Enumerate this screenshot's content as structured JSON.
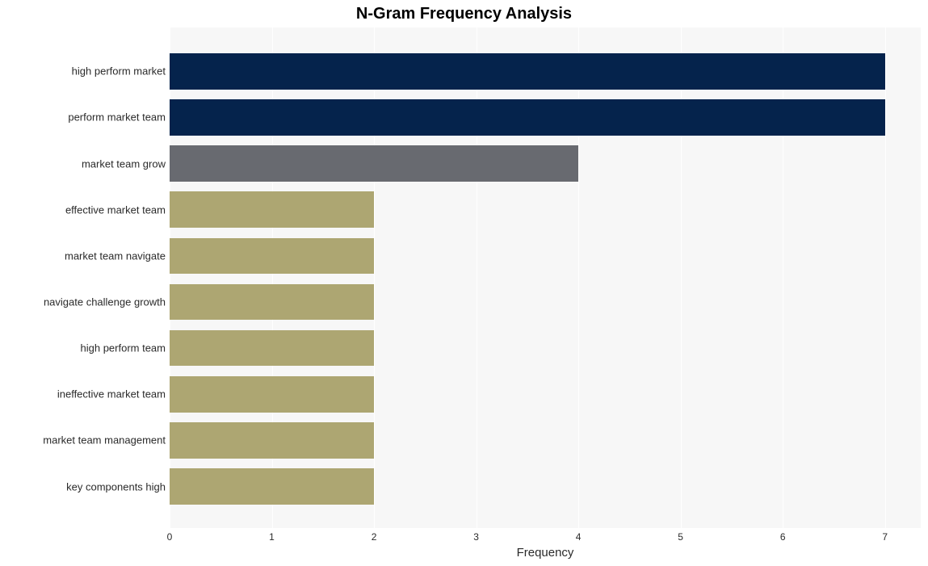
{
  "chart": {
    "type": "horizontal-bar",
    "title": "N-Gram Frequency Analysis",
    "title_fontsize": 20,
    "title_fontweight": 700,
    "xlabel": "Frequency",
    "label_fontsize": 15,
    "tick_fontsize": 12,
    "ylabel_fontsize": 13,
    "background_color": "#ffffff",
    "plot_background_color": "#f7f7f7",
    "grid_color": "#ffffff",
    "text_color": "#2a2a2a",
    "xlim": [
      0,
      7.35
    ],
    "xticks": [
      0,
      1,
      2,
      3,
      4,
      5,
      6,
      7
    ],
    "bar_height_ratio": 0.78,
    "categories": [
      "high perform market",
      "perform market team",
      "market team grow",
      "effective market team",
      "market team navigate",
      "navigate challenge growth",
      "high perform team",
      "ineffective market team",
      "market team management",
      "key components high"
    ],
    "values": [
      7,
      7,
      4,
      2,
      2,
      2,
      2,
      2,
      2,
      2
    ],
    "bar_colors": [
      "#05234c",
      "#05234c",
      "#686a70",
      "#ada672",
      "#ada672",
      "#ada672",
      "#ada672",
      "#ada672",
      "#ada672",
      "#ada672"
    ]
  }
}
